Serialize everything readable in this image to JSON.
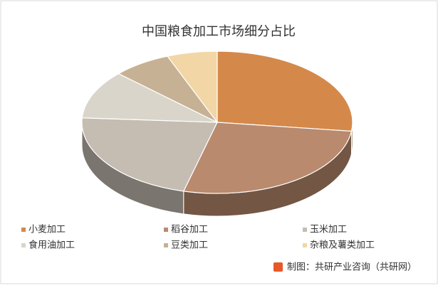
{
  "chart_data": {
    "type": "pie3d",
    "title": "中国粮食加工市场细分占比",
    "categories": [
      "小麦加工",
      "稻谷加工",
      "玉米加工",
      "食用油加工",
      "豆类加工",
      "杂粮及薯类加工"
    ],
    "values": [
      27,
      27,
      22,
      11,
      7,
      6
    ],
    "colors": [
      "#d4894a",
      "#b98a6e",
      "#c5bcb2",
      "#d9d5ca",
      "#c7b194",
      "#f2d6a5"
    ],
    "legend": "bottom",
    "source": "制图：共研产业咨询（共研网）"
  }
}
